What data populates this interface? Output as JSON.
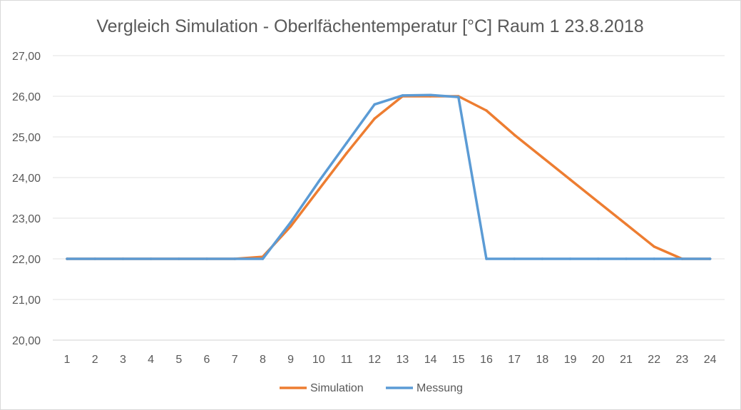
{
  "chart_data": {
    "type": "line",
    "title": "Vergleich Simulation - Oberlfächentemperatur  [°C] Raum 1 23.8.2018",
    "xlabel": "",
    "ylabel": "",
    "categories": [
      "1",
      "2",
      "3",
      "4",
      "5",
      "6",
      "7",
      "8",
      "9",
      "10",
      "11",
      "12",
      "13",
      "14",
      "15",
      "16",
      "17",
      "18",
      "19",
      "20",
      "21",
      "22",
      "23",
      "24"
    ],
    "ylim": [
      20,
      27
    ],
    "yticks": [
      "20,00",
      "21,00",
      "22,00",
      "23,00",
      "24,00",
      "25,00",
      "26,00",
      "27,00"
    ],
    "grid": true,
    "legend_position": "bottom",
    "series": [
      {
        "name": "Simulation",
        "color": "#ed7d31",
        "values": [
          22.0,
          22.0,
          22.0,
          22.0,
          22.0,
          22.0,
          22.0,
          22.05,
          22.8,
          23.7,
          24.6,
          25.45,
          26.0,
          26.0,
          26.0,
          25.65,
          25.05,
          24.5,
          23.95,
          23.4,
          22.85,
          22.3,
          22.0,
          22.0
        ]
      },
      {
        "name": "Messung",
        "color": "#5b9bd5",
        "values": [
          22.0,
          22.0,
          22.0,
          22.0,
          22.0,
          22.0,
          22.0,
          22.0,
          22.9,
          23.9,
          24.85,
          25.8,
          26.02,
          26.03,
          25.98,
          22.0,
          22.0,
          22.0,
          22.0,
          22.0,
          22.0,
          22.0,
          22.0,
          22.0
        ]
      }
    ]
  }
}
